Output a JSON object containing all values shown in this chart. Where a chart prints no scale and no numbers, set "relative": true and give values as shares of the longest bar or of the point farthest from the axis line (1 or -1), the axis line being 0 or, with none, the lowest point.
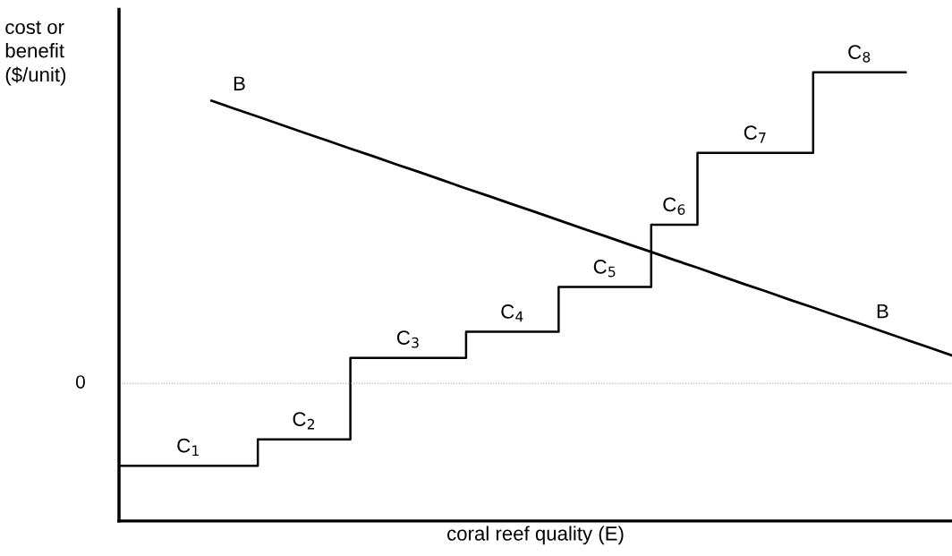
{
  "chart_data": {
    "type": "line",
    "relative": true,
    "xlabel": "coral reef quality (E)",
    "ylabel": "cost or\nbenefit\n($/unit)",
    "marker": "none",
    "line_style": "solid",
    "categories": [
      null,
      null,
      null,
      null,
      null,
      null,
      null,
      null,
      null,
      null,
      null,
      null,
      null,
      null,
      null,
      null,
      null,
      null,
      null,
      null,
      null,
      null,
      null,
      null,
      null,
      null,
      null,
      null,
      null,
      null,
      null,
      null,
      null,
      null,
      null,
      null,
      null
    ],
    "series": [
      {
        "type": "step",
        "color": "#000000",
        "values": [
          -0.265,
          -0.265,
          -0.265,
          -0.265,
          -0.265,
          -0.265,
          -0.18,
          -0.18,
          -0.18,
          -0.18,
          0.082,
          0.082,
          0.082,
          0.082,
          0.082,
          0.166,
          0.166,
          0.166,
          0.166,
          0.31,
          0.31,
          0.31,
          0.31,
          0.51,
          0.51,
          0.741,
          0.741,
          0.741,
          0.741,
          0.741,
          1,
          1,
          1,
          1,
          1,
          null,
          null
        ]
      },
      {
        "name": "B",
        "color": "#000000",
        "values": [
          null,
          null,
          null,
          null,
          0.909,
          0.883,
          0.858,
          0.832,
          0.806,
          0.781,
          0.755,
          0.73,
          0.704,
          0.679,
          0.653,
          0.627,
          0.602,
          0.576,
          0.551,
          0.525,
          0.499,
          0.474,
          0.448,
          0.423,
          0.397,
          0.372,
          0.346,
          0.32,
          0.295,
          0.269,
          0.244,
          0.218,
          0.193,
          0.167,
          0.141,
          0.116,
          0.09
        ]
      }
    ],
    "ref_lines": [
      {
        "axis": "y",
        "value": 0,
        "label": "0",
        "color": "#999999",
        "line_style": "dotted"
      }
    ],
    "annotations": [
      "C$_{1}$",
      "C$_{2}$",
      "C$_{3}$",
      "C$_{4}$",
      "C$_{5}$",
      "C$_{6}$",
      "C$_{7}$",
      "C$_{8}$"
    ]
  }
}
